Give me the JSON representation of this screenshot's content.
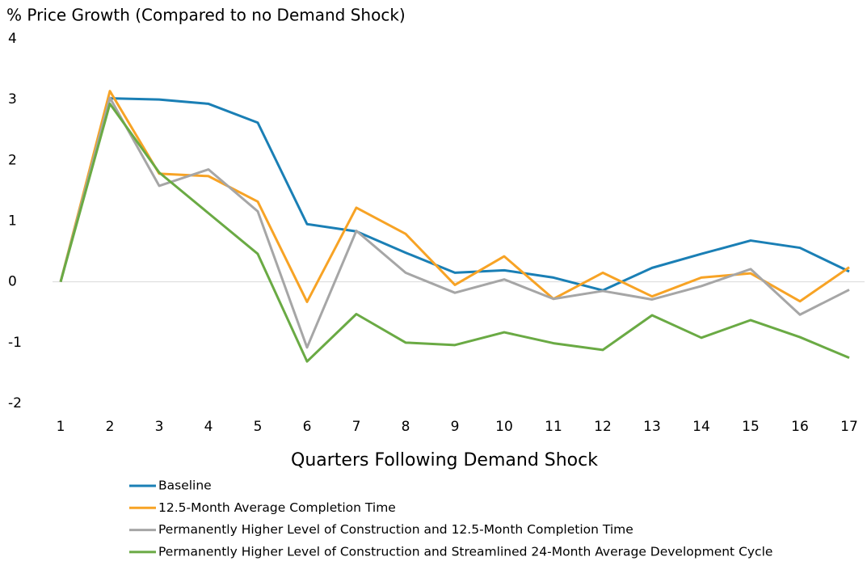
{
  "chart_data": {
    "type": "line",
    "title": "% Price Growth (Compared to no Demand Shock)",
    "x_label": "Quarters Following Demand Shock",
    "categories": [
      "1",
      "2",
      "3",
      "4",
      "5",
      "6",
      "7",
      "8",
      "9",
      "10",
      "11",
      "12",
      "13",
      "14",
      "15",
      "16",
      "17"
    ],
    "ylim": [
      -2,
      4
    ],
    "yticks": [
      -2,
      -1,
      0,
      1,
      2,
      3,
      4
    ],
    "grid": false,
    "series": [
      {
        "name": "Baseline",
        "color": "#1a7fb5",
        "values": [
          0,
          3.02,
          3.0,
          2.93,
          2.62,
          0.95,
          0.83,
          0.48,
          0.15,
          0.19,
          0.07,
          -0.14,
          0.23,
          0.46,
          0.68,
          0.56,
          0.17
        ]
      },
      {
        "name": "12.5-Month Average Completion Time",
        "color": "#f7a325",
        "values": [
          0,
          3.14,
          1.78,
          1.74,
          1.32,
          -0.33,
          1.22,
          0.79,
          -0.05,
          0.42,
          -0.28,
          0.15,
          -0.24,
          0.07,
          0.14,
          -0.32,
          0.24
        ]
      },
      {
        "name": "Permanently Higher Level of Construction and 12.5-Month Completion Time",
        "color": "#a6a6a6",
        "values": [
          0,
          3.03,
          1.58,
          1.85,
          1.16,
          -1.08,
          0.84,
          0.15,
          -0.18,
          0.04,
          -0.28,
          -0.15,
          -0.29,
          -0.07,
          0.21,
          -0.54,
          -0.13
        ]
      },
      {
        "name": "Permanently Higher Level of Construction and Streamlined 24-Month Average Development Cycle",
        "color": "#6aaa44",
        "values": [
          0,
          2.93,
          1.8,
          1.13,
          0.46,
          -1.31,
          -0.53,
          -1.0,
          -1.04,
          -0.83,
          -1.01,
          -1.12,
          -0.55,
          -0.92,
          -0.63,
          -0.91,
          -1.25
        ]
      }
    ]
  }
}
